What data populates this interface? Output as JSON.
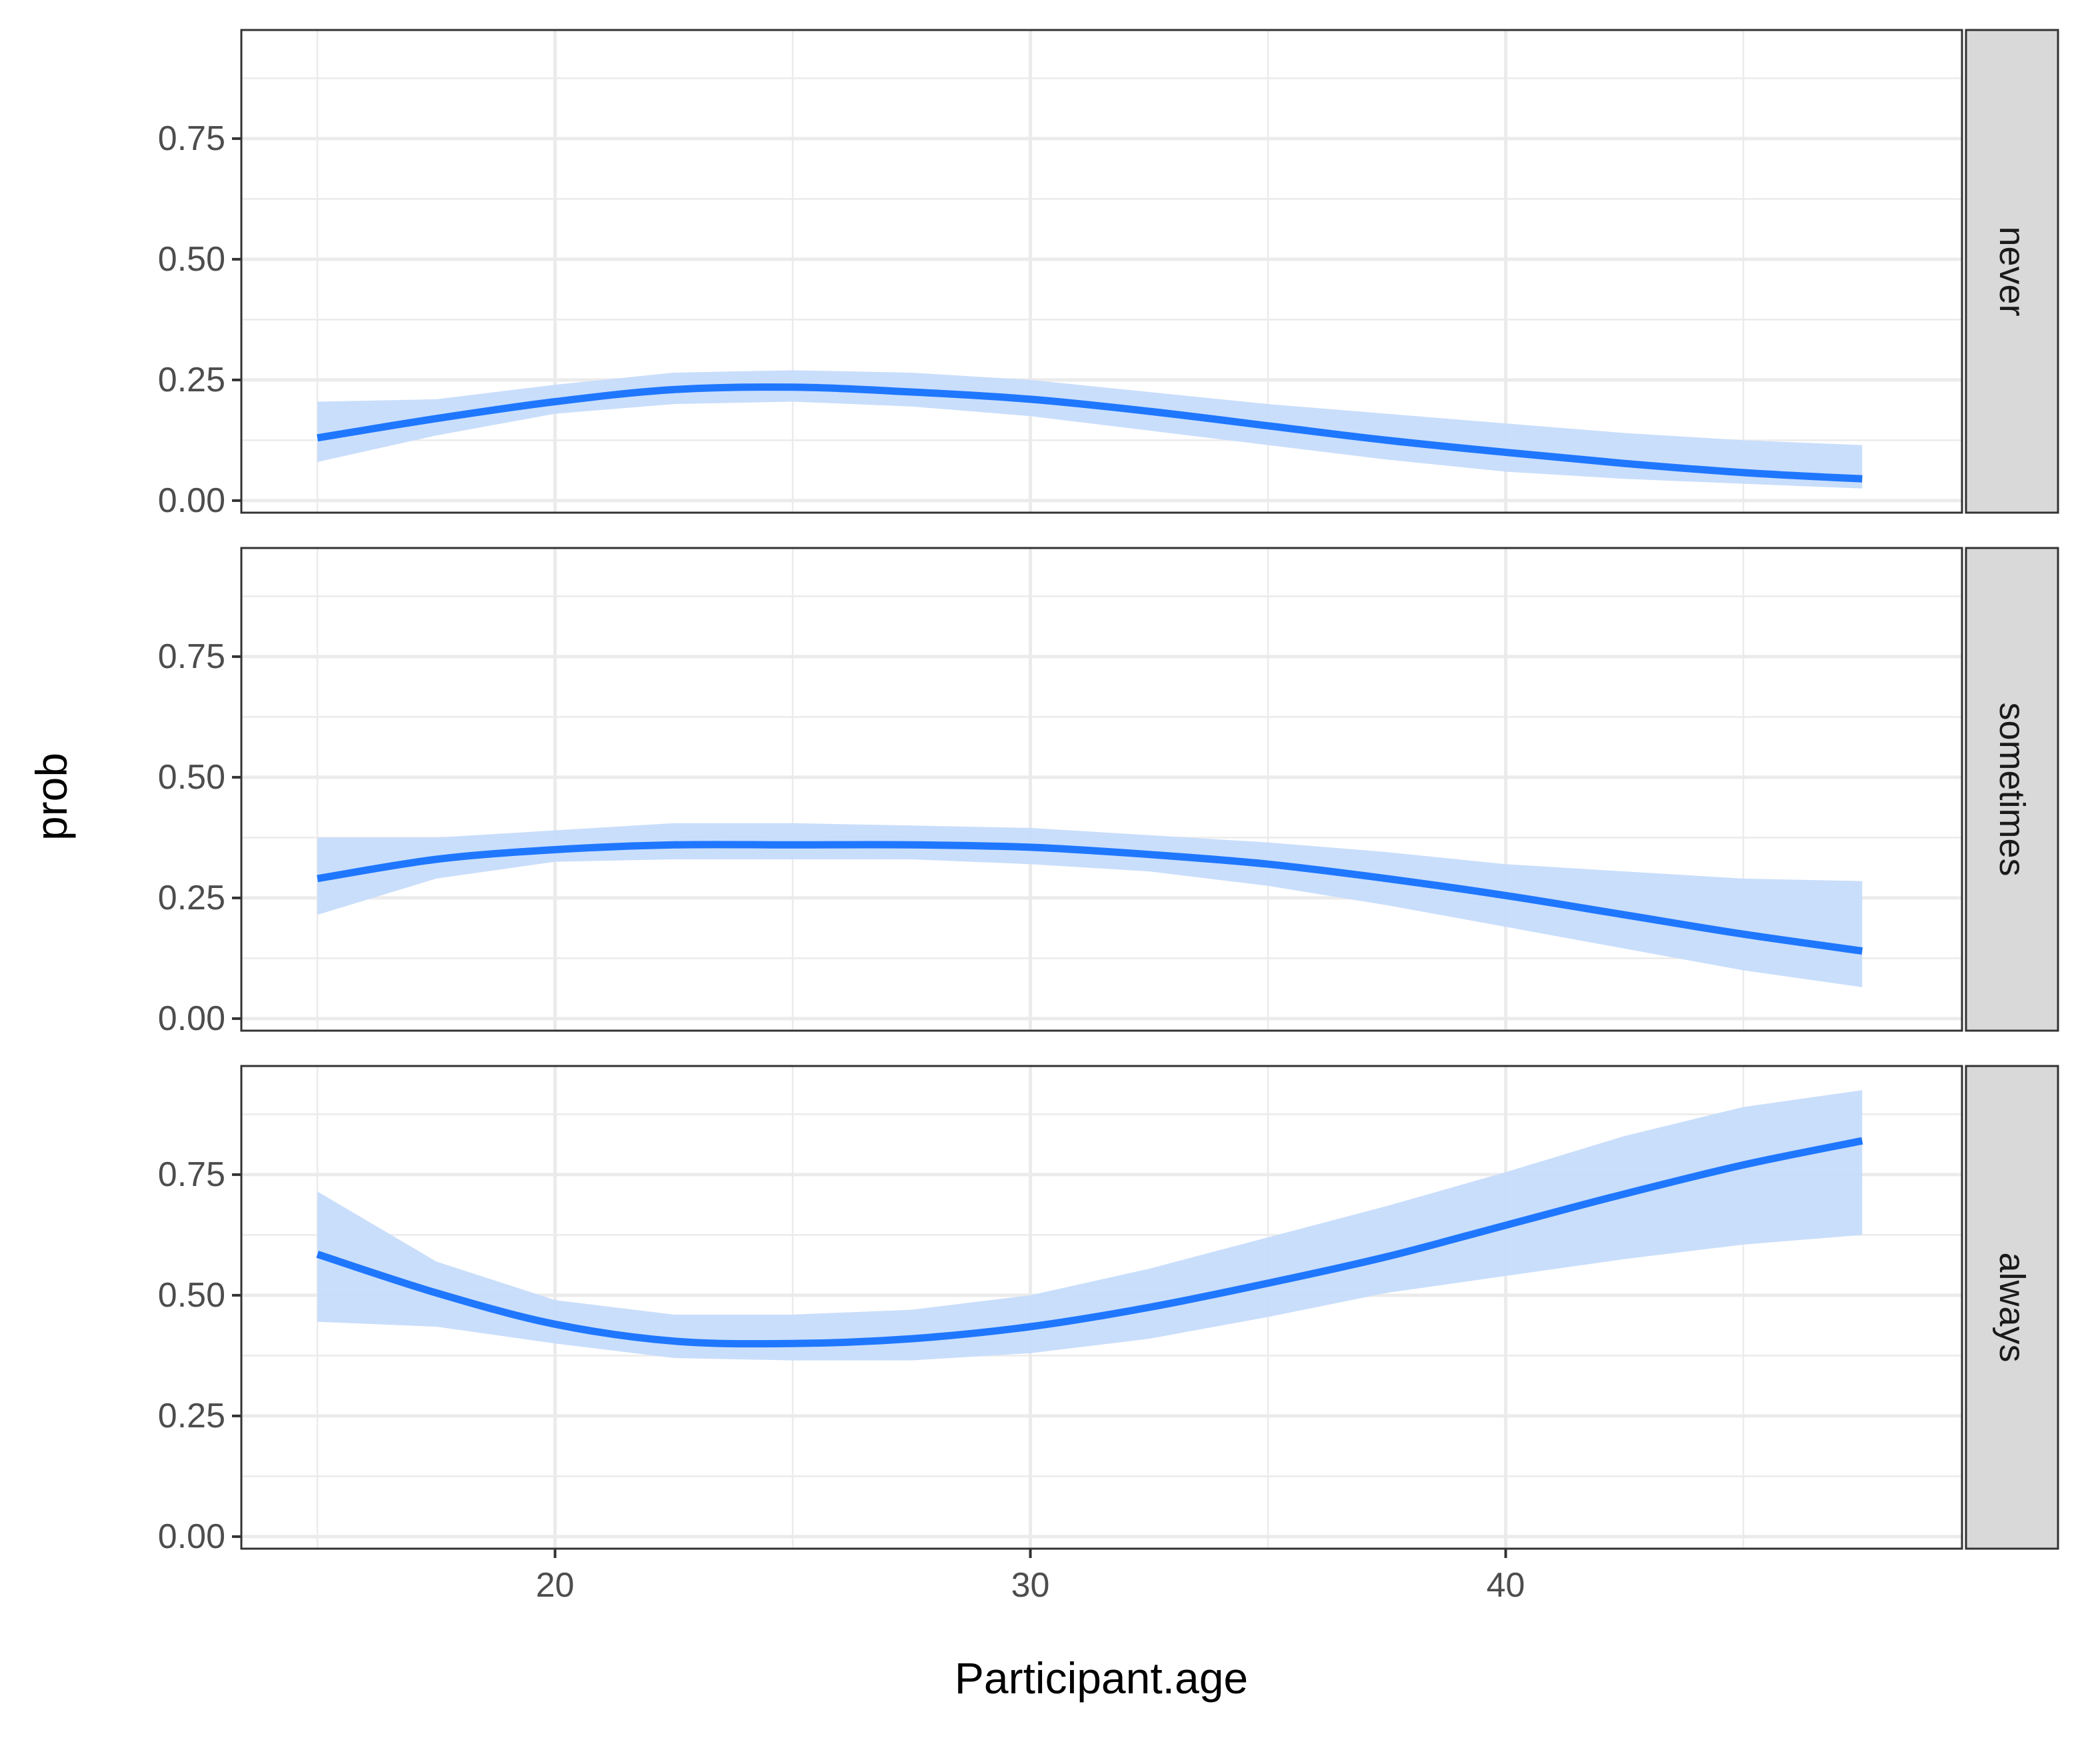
{
  "chart_data": {
    "type": "line",
    "facet_layout": "rows",
    "xlabel": "Participant.age",
    "ylabel": "prob",
    "xlim": [
      13.4,
      49.6
    ],
    "ylim": [
      -0.025,
      0.975
    ],
    "x_ticks": [
      20,
      30,
      40
    ],
    "x_tick_labels": [
      "20",
      "30",
      "40"
    ],
    "y_ticks": [
      0,
      0.25,
      0.5,
      0.75
    ],
    "y_tick_labels": [
      "0.00",
      "0.25",
      "0.50",
      "0.75"
    ],
    "grid": true,
    "legend": "none",
    "colors": {
      "line": "#1f77ff",
      "ribbon": "#c6dcfb",
      "panel_border": "#333333",
      "grid": "#ebebeb",
      "strip_fill": "#d9d9d9"
    },
    "x": [
      15,
      17.5,
      20,
      22.5,
      25,
      27.5,
      30,
      32.5,
      35,
      37.5,
      40,
      42.5,
      45,
      47.5
    ],
    "facets": [
      {
        "label": "never",
        "series": {
          "fit": [
            0.13,
            0.17,
            0.205,
            0.23,
            0.235,
            0.225,
            0.21,
            0.185,
            0.155,
            0.125,
            0.1,
            0.077,
            0.058,
            0.045
          ],
          "lower": [
            0.08,
            0.135,
            0.18,
            0.2,
            0.205,
            0.195,
            0.175,
            0.145,
            0.115,
            0.085,
            0.06,
            0.045,
            0.035,
            0.025
          ],
          "upper": [
            0.205,
            0.21,
            0.24,
            0.265,
            0.27,
            0.265,
            0.25,
            0.225,
            0.2,
            0.18,
            0.16,
            0.14,
            0.125,
            0.115
          ]
        }
      },
      {
        "label": "sometimes",
        "series": {
          "fit": [
            0.29,
            0.33,
            0.35,
            0.36,
            0.36,
            0.36,
            0.355,
            0.34,
            0.32,
            0.29,
            0.255,
            0.215,
            0.175,
            0.14
          ],
          "lower": [
            0.215,
            0.29,
            0.325,
            0.33,
            0.33,
            0.33,
            0.32,
            0.305,
            0.275,
            0.235,
            0.19,
            0.145,
            0.1,
            0.065
          ],
          "upper": [
            0.375,
            0.375,
            0.39,
            0.405,
            0.405,
            0.4,
            0.395,
            0.38,
            0.365,
            0.345,
            0.32,
            0.305,
            0.29,
            0.285
          ]
        }
      },
      {
        "label": "always",
        "series": {
          "fit": [
            0.585,
            0.505,
            0.44,
            0.405,
            0.4,
            0.41,
            0.435,
            0.475,
            0.525,
            0.58,
            0.645,
            0.71,
            0.77,
            0.82
          ],
          "lower": [
            0.445,
            0.435,
            0.4,
            0.37,
            0.365,
            0.365,
            0.38,
            0.41,
            0.455,
            0.505,
            0.54,
            0.575,
            0.605,
            0.625
          ],
          "upper": [
            0.715,
            0.57,
            0.49,
            0.46,
            0.46,
            0.47,
            0.5,
            0.555,
            0.62,
            0.685,
            0.755,
            0.83,
            0.89,
            0.925
          ]
        }
      }
    ]
  }
}
